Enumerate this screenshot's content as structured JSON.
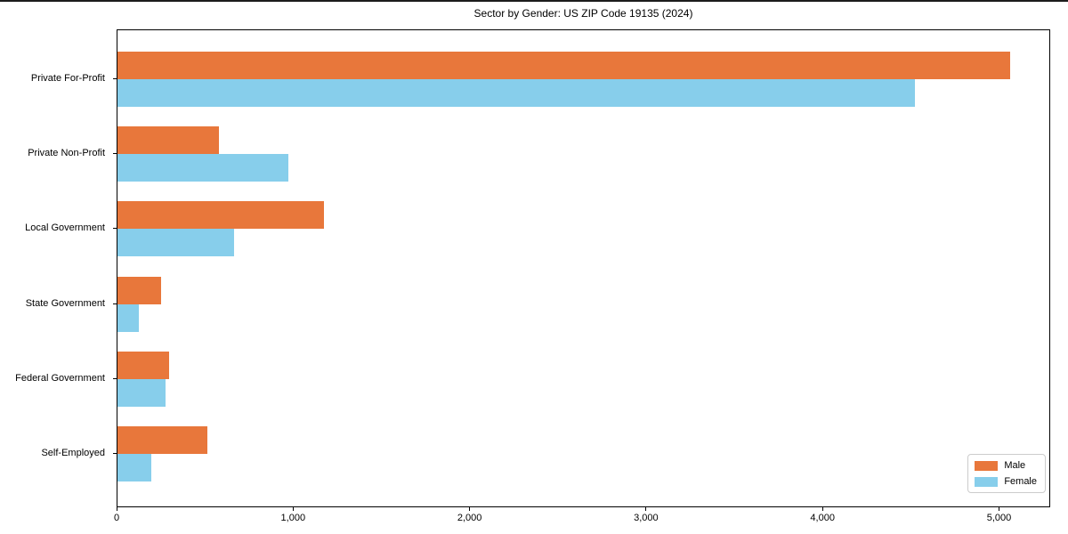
{
  "chart_data": {
    "type": "bar",
    "orientation": "horizontal",
    "title": "Sector by Gender: US ZIP Code 19135 (2024)",
    "categories": [
      "Private For-Profit",
      "Private Non-Profit",
      "Local Government",
      "State Government",
      "Federal Government",
      "Self-Employed"
    ],
    "series": [
      {
        "name": "Male",
        "color": "#e8773b",
        "values": [
          5060,
          575,
          1170,
          245,
          295,
          510
        ]
      },
      {
        "name": "Female",
        "color": "#87ceeb",
        "values": [
          4520,
          970,
          660,
          120,
          270,
          190
        ]
      }
    ],
    "xlabel": "",
    "ylabel": "",
    "xlim": [
      0,
      5290
    ],
    "xticks": [
      0,
      1000,
      2000,
      3000,
      4000,
      5000
    ],
    "xtick_labels": [
      "0",
      "1,000",
      "2,000",
      "3,000",
      "4,000",
      "5,000"
    ],
    "grid": false,
    "legend": {
      "position": "lower right"
    }
  }
}
